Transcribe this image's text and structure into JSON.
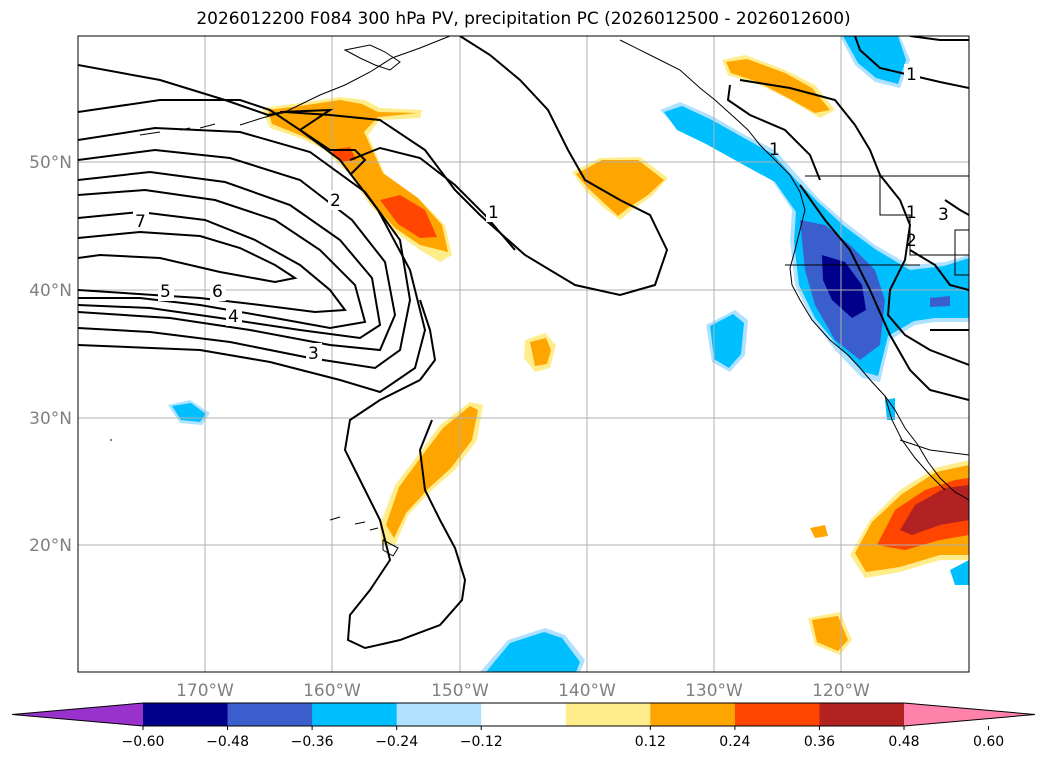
{
  "title": "2026012200 F084 300 hPa PV, precipitation PC (2026012500 - 2026012600)",
  "map": {
    "lon_range": [
      -180,
      -110
    ],
    "lat_range": [
      10,
      60
    ],
    "lat_ticks": [
      "50°N",
      "40°N",
      "30°N",
      "20°N"
    ],
    "lon_ticks": [
      "170°W",
      "160°W",
      "150°W",
      "140°W",
      "130°W",
      "120°W"
    ],
    "contour_labels": [
      "7",
      "5",
      "6",
      "4",
      "3",
      "2",
      "1",
      "1",
      "1",
      "1",
      "2",
      "3"
    ]
  },
  "colorbar": {
    "tick_labels": [
      "−0.60",
      "−0.48",
      "−0.36",
      "−0.24",
      "−0.12",
      "0.12",
      "0.24",
      "0.36",
      "0.48",
      "0.60"
    ],
    "colors": [
      "#9932cc",
      "#00008b",
      "#3a5fcd",
      "#00bfff",
      "#b0e2ff",
      "#ffffff",
      "#ffec8b",
      "#ffa500",
      "#ff4500",
      "#b22222",
      "#ff82ab"
    ]
  }
}
